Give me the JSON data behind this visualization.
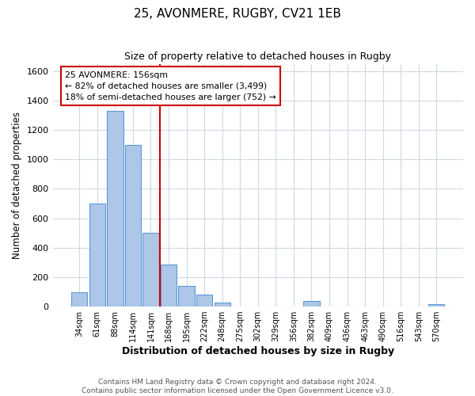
{
  "title": "25, AVONMERE, RUGBY, CV21 1EB",
  "subtitle": "Size of property relative to detached houses in Rugby",
  "xlabel": "Distribution of detached houses by size in Rugby",
  "ylabel": "Number of detached properties",
  "bar_color": "#aec6e8",
  "bar_edge_color": "#5b9bd5",
  "categories": [
    "34sqm",
    "61sqm",
    "88sqm",
    "114sqm",
    "141sqm",
    "168sqm",
    "195sqm",
    "222sqm",
    "248sqm",
    "275sqm",
    "302sqm",
    "329sqm",
    "356sqm",
    "382sqm",
    "409sqm",
    "436sqm",
    "463sqm",
    "490sqm",
    "516sqm",
    "543sqm",
    "570sqm"
  ],
  "values": [
    100,
    700,
    1330,
    1100,
    500,
    285,
    140,
    80,
    28,
    0,
    0,
    0,
    0,
    38,
    0,
    0,
    0,
    0,
    0,
    0,
    18
  ],
  "vline_x": 4.5,
  "vline_color": "#cc0000",
  "annotation_line1": "25 AVONMERE: 156sqm",
  "annotation_line2": "← 82% of detached houses are smaller (3,499)",
  "annotation_line3": "18% of semi-detached houses are larger (752) →",
  "ylim": [
    0,
    1650
  ],
  "yticks": [
    0,
    200,
    400,
    600,
    800,
    1000,
    1200,
    1400,
    1600
  ],
  "footer_text": "Contains HM Land Registry data © Crown copyright and database right 2024.\nContains public sector information licensed under the Open Government Licence v3.0.",
  "background_color": "#ffffff",
  "grid_color": "#d0d8e4"
}
